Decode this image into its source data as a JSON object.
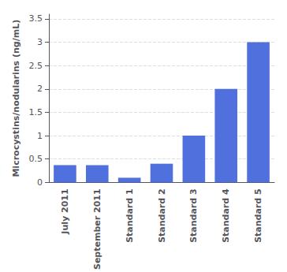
{
  "chart_data": {
    "type": "bar",
    "categories": [
      "July 2011",
      "September 2011",
      "Standard 1",
      "Standard 2",
      "Standard 3",
      "Standard 4",
      "Standard 5"
    ],
    "values": [
      0.37,
      0.37,
      0.1,
      0.4,
      1.0,
      2.0,
      3.0
    ],
    "ylabel": "Microcystins/nodularins (ng/mL)",
    "ylim": [
      0,
      3.6
    ],
    "yticks": [
      0,
      0.5,
      1,
      1.5,
      2,
      2.5,
      3,
      3.5
    ],
    "grid": true
  }
}
